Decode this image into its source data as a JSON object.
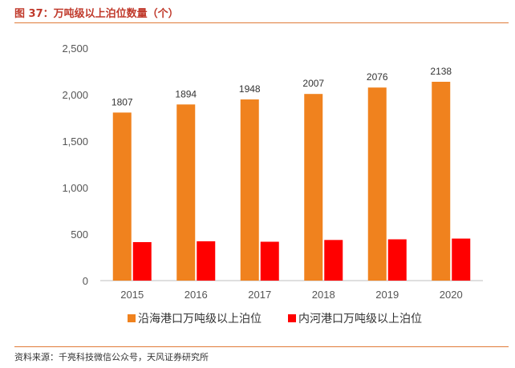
{
  "title": "图 37：万吨级以上泊位数量（个）",
  "source": "资料来源：千亮科技微信公众号，天风证券研究所",
  "chart_data": {
    "type": "bar",
    "categories": [
      "2015",
      "2016",
      "2017",
      "2018",
      "2019",
      "2020"
    ],
    "series": [
      {
        "name": "沿海港口万吨级以上泊位",
        "color": "#f0821e",
        "values": [
          1807,
          1894,
          1948,
          2007,
          2076,
          2138
        ],
        "labels": [
          "1807",
          "1894",
          "1948",
          "2007",
          "2076",
          "2138"
        ]
      },
      {
        "name": "内河港口万吨级以上泊位",
        "color": "#ff0000",
        "values": [
          414,
          423,
          418,
          437,
          444,
          452
        ],
        "labels": []
      }
    ],
    "ylim": [
      0,
      2500
    ],
    "yticks": [
      "0",
      "500",
      "1,000",
      "1,500",
      "2,000",
      "2,500"
    ],
    "yticks_values": [
      0,
      500,
      1000,
      1500,
      2000,
      2500
    ],
    "grid": false,
    "legend": "bottom"
  }
}
